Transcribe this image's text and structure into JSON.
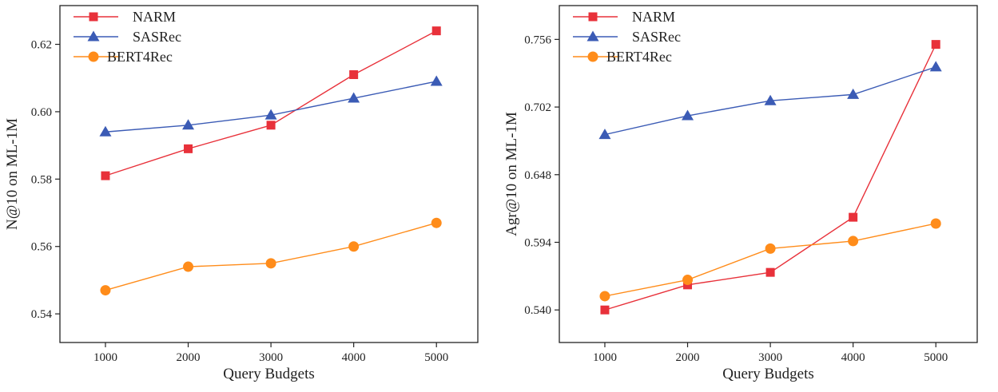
{
  "chart_data": [
    {
      "type": "line",
      "xlabel": "Query Budgets",
      "ylabel": "N@10 on ML-1M",
      "x": [
        1000,
        2000,
        3000,
        4000,
        5000
      ],
      "xticks": [
        "1000",
        "2000",
        "3000",
        "4000",
        "5000"
      ],
      "xlim": [
        450,
        5500
      ],
      "ylim": [
        0.5315,
        0.6315
      ],
      "yticks": [
        "0.54",
        "0.56",
        "0.58",
        "0.60",
        "0.62"
      ],
      "ytick_values": [
        0.54,
        0.56,
        0.58,
        0.6,
        0.62
      ],
      "grid": false,
      "legend_position": "top-left",
      "series": [
        {
          "name": "NARM",
          "values": [
            0.581,
            0.589,
            0.596,
            0.611,
            0.624
          ],
          "color": "#e8313a",
          "marker": "square"
        },
        {
          "name": "SASRec",
          "values": [
            0.594,
            0.596,
            0.599,
            0.604,
            0.609
          ],
          "color": "#3b5bb5",
          "marker": "triangle"
        },
        {
          "name": "BERT4Rec",
          "values": [
            0.547,
            0.554,
            0.555,
            0.56,
            0.567
          ],
          "color": "#ff8c1a",
          "marker": "circle"
        }
      ]
    },
    {
      "type": "line",
      "xlabel": "Query Budgets",
      "ylabel": "Agr@10 on ML-1M",
      "x": [
        1000,
        2000,
        3000,
        4000,
        5000
      ],
      "xticks": [
        "1000",
        "2000",
        "3000",
        "4000",
        "5000"
      ],
      "xlim": [
        450,
        5500
      ],
      "ylim": [
        0.514,
        0.783
      ],
      "yticks": [
        "0.540",
        "0.594",
        "0.648",
        "0.702",
        "0.756"
      ],
      "ytick_values": [
        0.54,
        0.594,
        0.648,
        0.702,
        0.756
      ],
      "grid": false,
      "legend_position": "top-left",
      "series": [
        {
          "name": "NARM",
          "values": [
            0.54,
            0.56,
            0.57,
            0.614,
            0.752
          ],
          "color": "#e8313a",
          "marker": "square"
        },
        {
          "name": "SASRec",
          "values": [
            0.68,
            0.695,
            0.707,
            0.712,
            0.734
          ],
          "color": "#3b5bb5",
          "marker": "triangle"
        },
        {
          "name": "BERT4Rec",
          "values": [
            0.551,
            0.564,
            0.589,
            0.595,
            0.609
          ],
          "color": "#ff8c1a",
          "marker": "circle"
        }
      ]
    }
  ]
}
